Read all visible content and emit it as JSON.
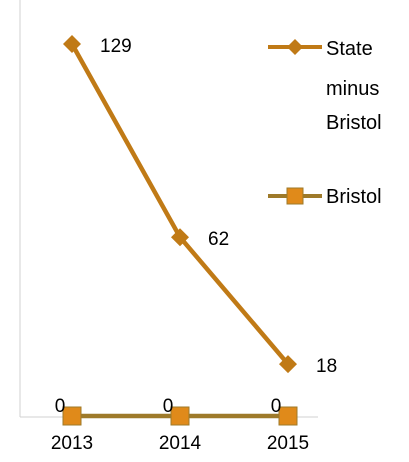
{
  "chart_data": {
    "type": "line",
    "categories": [
      "2013",
      "2014",
      "2015"
    ],
    "ylim": [
      0,
      140
    ],
    "grid": false,
    "legend": "right",
    "series": [
      {
        "name": "State minus Bristol",
        "values": [
          129,
          62,
          18
        ],
        "color": "#C07A16",
        "marker": "diamond"
      },
      {
        "name": "Bristol",
        "values": [
          0,
          0,
          0
        ],
        "color": "#9E7A2A",
        "marker_fill": "#E08A1A",
        "marker": "square"
      }
    ]
  }
}
